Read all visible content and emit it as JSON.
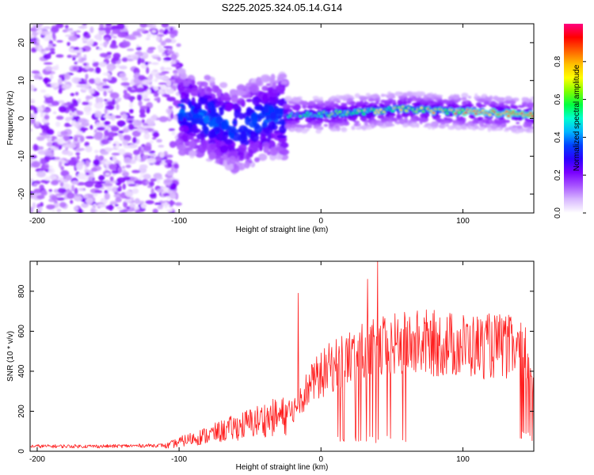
{
  "title": "S225.2025.324.05.14.G14",
  "chart_data": [
    {
      "type": "heatmap",
      "name": "spectrogram",
      "xlabel": "Height of straight line (km)",
      "ylabel": "Frequency (Hz)",
      "xlim": [
        -205,
        150
      ],
      "ylim": [
        -25,
        25
      ],
      "xticks": [
        -200,
        -100,
        0,
        100
      ],
      "yticks": [
        20,
        10,
        0,
        -10,
        -20
      ],
      "colorbar": {
        "label": "Normalized spectral amplitude",
        "range": [
          0,
          1
        ],
        "ticks": [
          0.0,
          0.2,
          0.4,
          0.6,
          0.8
        ],
        "tick_labels": [
          "0.0",
          "0.2",
          "0.4",
          "0.6",
          "0.8"
        ],
        "colors": [
          "#ffffff",
          "#d8b8ff",
          "#a855ff",
          "#7a00ff",
          "#2a00ff",
          "#0040ff",
          "#00b4ff",
          "#00ffd0",
          "#00ff40",
          "#80ff00",
          "#ffff00",
          "#ffc000",
          "#ff6000",
          "#ff0000",
          "#ff0080"
        ]
      },
      "dominant_track": [
        {
          "x": -130,
          "y": -5
        },
        {
          "x": -100,
          "y": 2
        },
        {
          "x": -80,
          "y": 0
        },
        {
          "x": -60,
          "y": -3
        },
        {
          "x": -40,
          "y": 0
        },
        {
          "x": -20,
          "y": 1
        },
        {
          "x": 0,
          "y": 1
        },
        {
          "x": 20,
          "y": 1.5
        },
        {
          "x": 40,
          "y": 2
        },
        {
          "x": 60,
          "y": 2.5
        },
        {
          "x": 80,
          "y": 2
        },
        {
          "x": 100,
          "y": 1.8
        },
        {
          "x": 120,
          "y": 1.5
        },
        {
          "x": 140,
          "y": 1
        }
      ]
    },
    {
      "type": "line",
      "name": "snr",
      "xlabel": "Height of straight line (km)",
      "ylabel": "SNR (10 * v/v)",
      "xlim": [
        -205,
        150
      ],
      "ylim": [
        0,
        950
      ],
      "xticks": [
        -200,
        -100,
        0,
        100
      ],
      "yticks": [
        0,
        200,
        400,
        600,
        800
      ],
      "color": "#ff2020",
      "envelope": [
        {
          "x": -205,
          "y": 25
        },
        {
          "x": -150,
          "y": 25
        },
        {
          "x": -110,
          "y": 30
        },
        {
          "x": -95,
          "y": 70
        },
        {
          "x": -80,
          "y": 100
        },
        {
          "x": -60,
          "y": 150
        },
        {
          "x": -40,
          "y": 200
        },
        {
          "x": -20,
          "y": 230
        },
        {
          "x": -15,
          "y": 300
        },
        {
          "x": -5,
          "y": 400
        },
        {
          "x": 10,
          "y": 500
        },
        {
          "x": 30,
          "y": 560
        },
        {
          "x": 50,
          "y": 600
        },
        {
          "x": 70,
          "y": 620
        },
        {
          "x": 90,
          "y": 610
        },
        {
          "x": 110,
          "y": 600
        },
        {
          "x": 130,
          "y": 600
        },
        {
          "x": 145,
          "y": 550
        },
        {
          "x": 150,
          "y": 400
        }
      ],
      "spikes": [
        {
          "x": -16,
          "y": 790
        },
        {
          "x": 40,
          "y": 950
        },
        {
          "x": 33,
          "y": 860
        }
      ]
    }
  ]
}
